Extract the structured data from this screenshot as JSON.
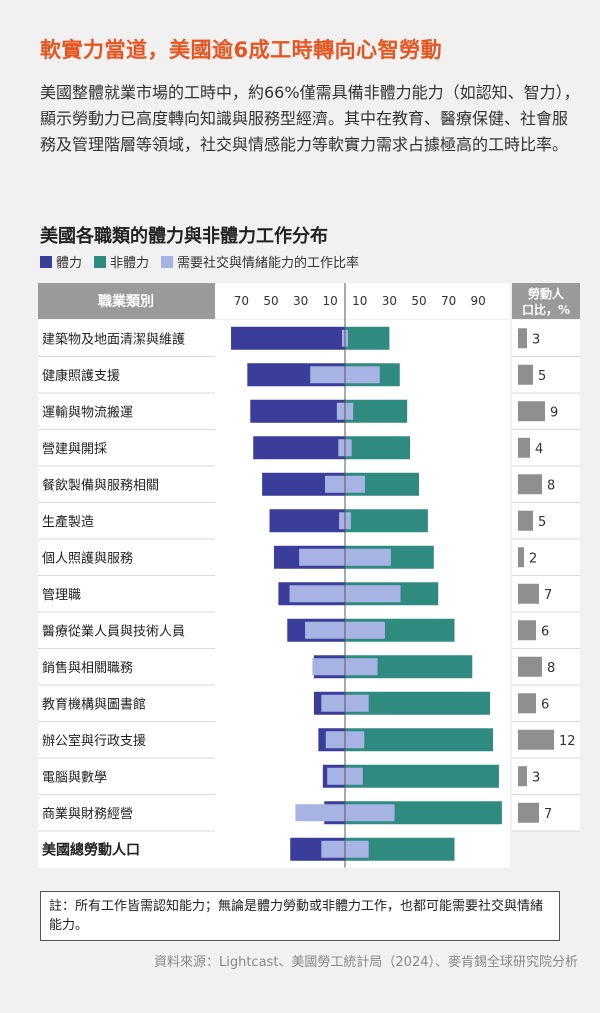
{
  "headline": "軟實力當道，美國逾6成工時轉向心智勞動",
  "intro": "美國整體就業市場的工時中，約66%僅需具備非體力能力（如認知、智力），顯示勞動力已高度轉向知識與服務型經濟。其中在教育、醫療保健、社會服務及管理階層等領域，社交與情感能力等軟實力需求占據極高的工時比率。",
  "note": "註：所有工作皆需認知能力；無論是體力勞動或非體力工作，也都可能需要社交與情緒能力。",
  "source": "資料來源：Lightcast、美國勞工統計局（2024）、麥肯錫全球研究院分析",
  "colors": {
    "physical": "#3a3d9a",
    "non_physical": "#2f8a80",
    "social": "#a7b3e2",
    "share_bar": "#8f8f8f",
    "header_bg": "#9a9a9a",
    "accent": "#e8541e"
  },
  "chart_data": {
    "type": "bar",
    "title": "美國各職類的體力與非體力工作分布",
    "legend": [
      "體力",
      "非體力",
      "需要社交與情緒能力的工作比率"
    ],
    "column_header": "職業類別",
    "share_header": "勞動人口比，%",
    "left_ticks": [
      "70",
      "50",
      "30",
      "10"
    ],
    "right_ticks": [
      "10",
      "30",
      "50",
      "70",
      "90"
    ],
    "categories": [
      "建築物及地面清潔與維護",
      "健康照護支援",
      "運輸與物流搬運",
      "營建與開採",
      "餐飲製備與服務相關",
      "生產製造",
      "個人照護與服務",
      "管理職",
      "醫療從業人員與技術人員",
      "銷售與相關職務",
      "教育機構與圖書館",
      "辦公室與行政支援",
      "電腦與數學",
      "商業與財務經營",
      "美國總勞動人口"
    ],
    "series": [
      {
        "name": "體力",
        "values": [
          77,
          66,
          64,
          62,
          56,
          51,
          48,
          45,
          39,
          21,
          21,
          18,
          15,
          14,
          37
        ]
      },
      {
        "name": "非體力",
        "values": [
          30,
          37,
          42,
          44,
          50,
          56,
          60,
          63,
          74,
          86,
          98,
          100,
          104,
          106,
          74
        ]
      },
      {
        "name": "需要社交與情緒能力的工作比率",
        "values": [
          4,
          47,
          11,
          9,
          27,
          8,
          62,
          75,
          54,
          44,
          32,
          26,
          24,
          67,
          32
        ]
      }
    ],
    "labor_share": [
      3,
      5,
      9,
      4,
      8,
      5,
      2,
      7,
      6,
      8,
      6,
      12,
      3,
      7,
      null
    ],
    "labor_share_labels": [
      "3",
      "5",
      "9",
      "4",
      "8",
      "5",
      "2",
      "7",
      "6",
      "8",
      "6",
      "12",
      "3",
      "7",
      ""
    ]
  }
}
